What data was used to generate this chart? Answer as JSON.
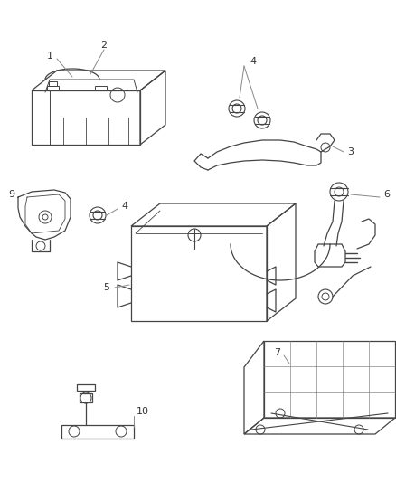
{
  "bg_color": "#ffffff",
  "line_color": "#444444",
  "label_color": "#333333",
  "leader_color": "#888888",
  "figsize": [
    4.38,
    5.33
  ],
  "dpi": 100,
  "lw": 0.9
}
